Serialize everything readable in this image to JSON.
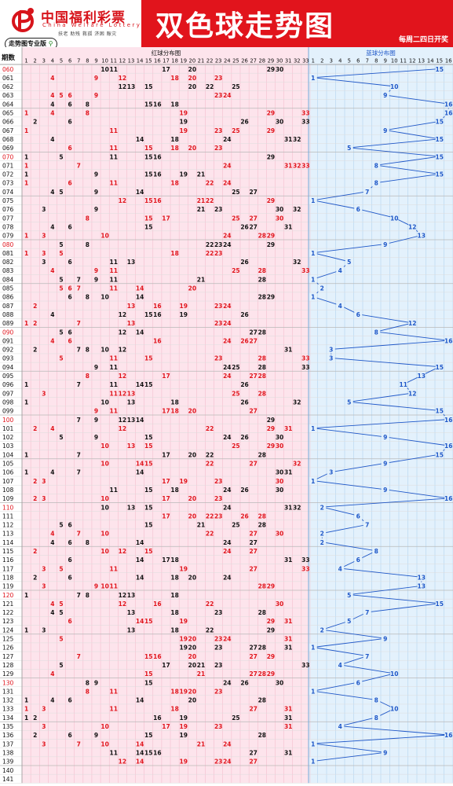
{
  "header": {
    "logo_cn": "中国福利彩票",
    "logo_en": "China Welfare Lottery",
    "logo_sub": "扶老  助残  救孤  济困  赈灾",
    "badge": "走势图专业版",
    "title": "双色球走势图",
    "schedule": "每周二四日开奖"
  },
  "chart_data": {
    "type": "table",
    "period_label": "期数",
    "red_title": "红球分布图",
    "blue_title": "蓝球分布图",
    "red_range": [
      1,
      33
    ],
    "blue_range": [
      1,
      16
    ],
    "colors": {
      "red_zone": "#fde4ec",
      "blue_zone": "#e3f1fc",
      "red_number": "#e1141c",
      "black_number": "#111111",
      "blue_number": "#1e57c8",
      "red_period": "#e1141c",
      "header_red": "#e1141c"
    },
    "draws": [
      {
        "period": "060",
        "highlight": true,
        "red": [
          10,
          11,
          17,
          20,
          29,
          30
        ],
        "blue": 15
      },
      {
        "period": "061",
        "highlight": false,
        "red": [
          4,
          9,
          12,
          18,
          20,
          23
        ],
        "blue": 1
      },
      {
        "period": "062",
        "highlight": false,
        "red": [
          12,
          13,
          15,
          20,
          22,
          25
        ],
        "blue": 10
      },
      {
        "period": "063",
        "highlight": false,
        "red": [
          4,
          5,
          6,
          9,
          23,
          24
        ],
        "blue": 9
      },
      {
        "period": "064",
        "highlight": false,
        "red": [
          4,
          6,
          8,
          15,
          16,
          18
        ],
        "blue": 16
      },
      {
        "period": "065",
        "highlight": false,
        "red": [
          1,
          4,
          8,
          19,
          29,
          33
        ],
        "blue": 16
      },
      {
        "period": "066",
        "highlight": false,
        "red": [
          2,
          6,
          19,
          26,
          30,
          33
        ],
        "blue": 15
      },
      {
        "period": "067",
        "highlight": false,
        "red": [
          1,
          11,
          19,
          23,
          25,
          29
        ],
        "blue": 9
      },
      {
        "period": "068",
        "highlight": false,
        "red": [
          4,
          14,
          18,
          24,
          31,
          32
        ],
        "blue": 15
      },
      {
        "period": "069",
        "highlight": false,
        "red": [
          6,
          11,
          15,
          18,
          20,
          23
        ],
        "blue": 5
      },
      {
        "period": "070",
        "highlight": true,
        "red": [
          1,
          5,
          11,
          15,
          16,
          29
        ],
        "blue": 15
      },
      {
        "period": "071",
        "highlight": false,
        "red": [
          1,
          7,
          24,
          31,
          32,
          33
        ],
        "blue": 8
      },
      {
        "period": "072",
        "highlight": false,
        "red": [
          1,
          9,
          15,
          16,
          19,
          21
        ],
        "blue": 15
      },
      {
        "period": "073",
        "highlight": false,
        "red": [
          1,
          6,
          11,
          18,
          22,
          24
        ],
        "blue": 8
      },
      {
        "period": "074",
        "highlight": false,
        "red": [
          4,
          5,
          9,
          14,
          25,
          27
        ],
        "blue": 7
      },
      {
        "period": "075",
        "highlight": false,
        "red": [
          12,
          15,
          16,
          21,
          22,
          29
        ],
        "blue": 1
      },
      {
        "period": "076",
        "highlight": false,
        "red": [
          3,
          9,
          21,
          23,
          30,
          32
        ],
        "blue": 6
      },
      {
        "period": "077",
        "highlight": false,
        "red": [
          8,
          15,
          17,
          25,
          27,
          30
        ],
        "blue": 10
      },
      {
        "period": "078",
        "highlight": false,
        "red": [
          4,
          6,
          15,
          26,
          27,
          31
        ],
        "blue": 12
      },
      {
        "period": "079",
        "highlight": false,
        "red": [
          1,
          3,
          10,
          24,
          28,
          29
        ],
        "blue": 13
      },
      {
        "period": "080",
        "highlight": true,
        "red": [
          5,
          8,
          22,
          23,
          24,
          29
        ],
        "blue": 9
      },
      {
        "period": "081",
        "highlight": false,
        "red": [
          1,
          3,
          5,
          18,
          22,
          23
        ],
        "blue": 1
      },
      {
        "period": "082",
        "highlight": false,
        "red": [
          3,
          6,
          11,
          13,
          26,
          32
        ],
        "blue": 5
      },
      {
        "period": "083",
        "highlight": false,
        "red": [
          4,
          9,
          11,
          25,
          28,
          33
        ],
        "blue": 4
      },
      {
        "period": "084",
        "highlight": false,
        "red": [
          5,
          7,
          9,
          11,
          21,
          28
        ],
        "blue": 1
      },
      {
        "period": "085",
        "highlight": false,
        "red": [
          5,
          6,
          7,
          11,
          14,
          20
        ],
        "blue": 2
      },
      {
        "period": "086",
        "highlight": false,
        "red": [
          6,
          8,
          10,
          14,
          28,
          29
        ],
        "blue": 1
      },
      {
        "period": "087",
        "highlight": false,
        "red": [
          2,
          13,
          16,
          19,
          23,
          24
        ],
        "blue": 4
      },
      {
        "period": "088",
        "highlight": false,
        "red": [
          4,
          12,
          15,
          16,
          19,
          26
        ],
        "blue": 6
      },
      {
        "period": "089",
        "highlight": false,
        "red": [
          1,
          2,
          7,
          13,
          23,
          24
        ],
        "blue": 12
      },
      {
        "period": "090",
        "highlight": true,
        "red": [
          5,
          6,
          12,
          14,
          27,
          28
        ],
        "blue": 8
      },
      {
        "period": "091",
        "highlight": false,
        "red": [
          4,
          6,
          16,
          24,
          26,
          27
        ],
        "blue": 16
      },
      {
        "period": "092",
        "highlight": false,
        "red": [
          2,
          7,
          8,
          10,
          12,
          31
        ],
        "blue": 3
      },
      {
        "period": "093",
        "highlight": false,
        "red": [
          5,
          11,
          15,
          23,
          28,
          33
        ],
        "blue": 3
      },
      {
        "period": "094",
        "highlight": false,
        "red": [
          9,
          11,
          24,
          25,
          28,
          33
        ],
        "blue": 15
      },
      {
        "period": "095",
        "highlight": false,
        "red": [
          8,
          12,
          17,
          24,
          27,
          28
        ],
        "blue": 13
      },
      {
        "period": "096",
        "highlight": false,
        "red": [
          1,
          7,
          11,
          14,
          15,
          26
        ],
        "blue": 11
      },
      {
        "period": "097",
        "highlight": false,
        "red": [
          3,
          11,
          12,
          13,
          25,
          28
        ],
        "blue": 12
      },
      {
        "period": "098",
        "highlight": false,
        "red": [
          1,
          10,
          13,
          18,
          26,
          32
        ],
        "blue": 5
      },
      {
        "period": "099",
        "highlight": false,
        "red": [
          9,
          11,
          17,
          18,
          20,
          27
        ],
        "blue": 15
      },
      {
        "period": "100",
        "highlight": true,
        "red": [
          7,
          9,
          12,
          13,
          14,
          29
        ],
        "blue": 16
      },
      {
        "period": "101",
        "highlight": false,
        "red": [
          2,
          4,
          12,
          22,
          29,
          31
        ],
        "blue": 1
      },
      {
        "period": "102",
        "highlight": false,
        "red": [
          5,
          9,
          15,
          24,
          26,
          30
        ],
        "blue": 9
      },
      {
        "period": "103",
        "highlight": false,
        "red": [
          10,
          13,
          15,
          25,
          29,
          30
        ],
        "blue": 16
      },
      {
        "period": "104",
        "highlight": false,
        "red": [
          1,
          7,
          17,
          20,
          22,
          28
        ],
        "blue": 15
      },
      {
        "period": "105",
        "highlight": false,
        "red": [
          10,
          14,
          15,
          22,
          27,
          32
        ],
        "blue": 9
      },
      {
        "period": "106",
        "highlight": false,
        "red": [
          1,
          4,
          7,
          14,
          30,
          31
        ],
        "blue": 3
      },
      {
        "period": "107",
        "highlight": false,
        "red": [
          2,
          3,
          17,
          19,
          23,
          30
        ],
        "blue": 1
      },
      {
        "period": "108",
        "highlight": false,
        "red": [
          11,
          15,
          18,
          24,
          26,
          30
        ],
        "blue": 9
      },
      {
        "period": "109",
        "highlight": false,
        "red": [
          2,
          3,
          10,
          17,
          20,
          23
        ],
        "blue": 16
      },
      {
        "period": "110",
        "highlight": true,
        "red": [
          10,
          13,
          15,
          24,
          31,
          32
        ],
        "blue": 2
      },
      {
        "period": "111",
        "highlight": false,
        "red": [
          17,
          20,
          22,
          23,
          26,
          28
        ],
        "blue": 6
      },
      {
        "period": "112",
        "highlight": false,
        "red": [
          5,
          6,
          15,
          21,
          25,
          28
        ],
        "blue": 7
      },
      {
        "period": "113",
        "highlight": false,
        "red": [
          4,
          7,
          10,
          22,
          27,
          30
        ],
        "blue": 2
      },
      {
        "period": "114",
        "highlight": false,
        "red": [
          4,
          6,
          8,
          14,
          24,
          27
        ],
        "blue": 2
      },
      {
        "period": "115",
        "highlight": false,
        "red": [
          2,
          10,
          12,
          15,
          24,
          27
        ],
        "blue": 8
      },
      {
        "period": "116",
        "highlight": false,
        "red": [
          6,
          14,
          17,
          18,
          31,
          33
        ],
        "blue": 6
      },
      {
        "period": "117",
        "highlight": false,
        "red": [
          3,
          5,
          11,
          19,
          27,
          33
        ],
        "blue": 4
      },
      {
        "period": "118",
        "highlight": false,
        "red": [
          2,
          6,
          14,
          18,
          20,
          24
        ],
        "blue": 13
      },
      {
        "period": "119",
        "highlight": false,
        "red": [
          3,
          9,
          10,
          11,
          28,
          29
        ],
        "blue": 13
      },
      {
        "period": "120",
        "highlight": true,
        "red": [
          1,
          7,
          8,
          12,
          13,
          18
        ],
        "blue": 5
      },
      {
        "period": "121",
        "highlight": false,
        "red": [
          4,
          5,
          12,
          16,
          22,
          30
        ],
        "blue": 15
      },
      {
        "period": "122",
        "highlight": false,
        "red": [
          4,
          5,
          13,
          18,
          23,
          28
        ],
        "blue": 7
      },
      {
        "period": "123",
        "highlight": false,
        "red": [
          6,
          14,
          15,
          19,
          29,
          31
        ],
        "blue": 5
      },
      {
        "period": "124",
        "highlight": false,
        "red": [
          1,
          3,
          13,
          18,
          22,
          29
        ],
        "blue": 2
      },
      {
        "period": "125",
        "highlight": false,
        "red": [
          5,
          19,
          20,
          23,
          24,
          31
        ],
        "blue": 9
      },
      {
        "period": "126",
        "highlight": false,
        "red": [
          19,
          20,
          23,
          27,
          28,
          31
        ],
        "blue": 1
      },
      {
        "period": "127",
        "highlight": false,
        "red": [
          7,
          15,
          16,
          20,
          27,
          29
        ],
        "blue": 7
      },
      {
        "period": "128",
        "highlight": false,
        "red": [
          5,
          17,
          20,
          21,
          23,
          33
        ],
        "blue": 4
      },
      {
        "period": "129",
        "highlight": false,
        "red": [
          4,
          15,
          21,
          27,
          28,
          29
        ],
        "blue": 10
      },
      {
        "period": "130",
        "highlight": true,
        "red": [
          8,
          9,
          15,
          24,
          26,
          30
        ],
        "blue": 6
      },
      {
        "period": "131",
        "highlight": false,
        "red": [
          8,
          11,
          18,
          19,
          20,
          23
        ],
        "blue": 1
      },
      {
        "period": "132",
        "highlight": false,
        "red": [
          1,
          4,
          6,
          14,
          20,
          28
        ],
        "blue": 8
      },
      {
        "period": "133",
        "highlight": false,
        "red": [
          1,
          3,
          11,
          18,
          27,
          31
        ],
        "blue": 10
      },
      {
        "period": "134",
        "highlight": false,
        "red": [
          1,
          2,
          16,
          19,
          25,
          31
        ],
        "blue": 8
      },
      {
        "period": "135",
        "highlight": false,
        "red": [
          3,
          10,
          17,
          19,
          23,
          31
        ],
        "blue": 4
      },
      {
        "period": "136",
        "highlight": false,
        "red": [
          2,
          6,
          9,
          15,
          19,
          28
        ],
        "blue": 16
      },
      {
        "period": "137",
        "highlight": false,
        "red": [
          3,
          7,
          10,
          14,
          21,
          24
        ],
        "blue": 1
      },
      {
        "period": "138",
        "highlight": false,
        "red": [
          11,
          14,
          15,
          16,
          27,
          31
        ],
        "blue": 9
      },
      {
        "period": "139",
        "highlight": false,
        "red": [
          12,
          14,
          19,
          23,
          24,
          27
        ],
        "blue": 1
      },
      {
        "period": "140",
        "highlight": false,
        "red": [],
        "blue": null
      },
      {
        "period": "141",
        "highlight": false,
        "red": [],
        "blue": null
      }
    ]
  }
}
